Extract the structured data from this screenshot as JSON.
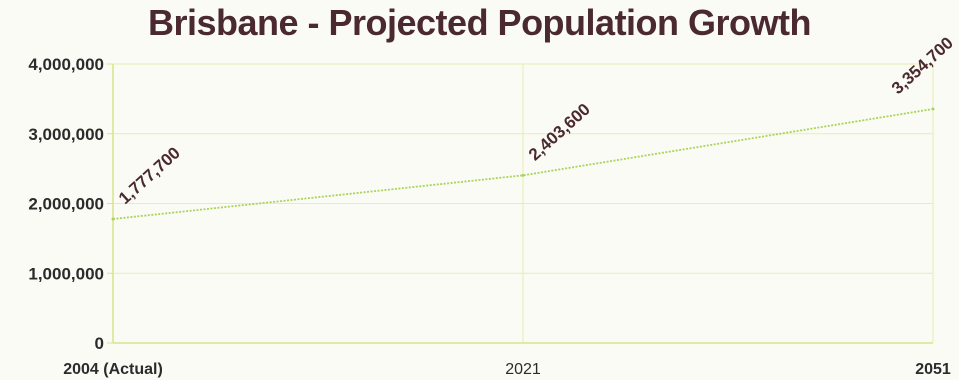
{
  "chart_data": {
    "type": "line",
    "title": "Brisbane - Projected Population Growth",
    "categories": [
      "2004 (Actual)",
      "2021",
      "2051"
    ],
    "series": [
      {
        "values": [
          1777700,
          2403600,
          3354700
        ]
      }
    ],
    "data_labels": [
      "1,777,700",
      "2,403,600",
      "3,354,700"
    ],
    "y_ticks": [
      "0",
      "1,000,000",
      "2,000,000",
      "3,000,000",
      "4,000,000"
    ],
    "y_tick_values": [
      0,
      1000000,
      2000000,
      3000000,
      4000000
    ],
    "ylim": [
      0,
      4000000
    ],
    "grid": true,
    "line_color": "#a8d45a",
    "grid_color": "#e6eeb4",
    "axis_color": "#d7e58c",
    "title_color": "#4a2a30"
  }
}
